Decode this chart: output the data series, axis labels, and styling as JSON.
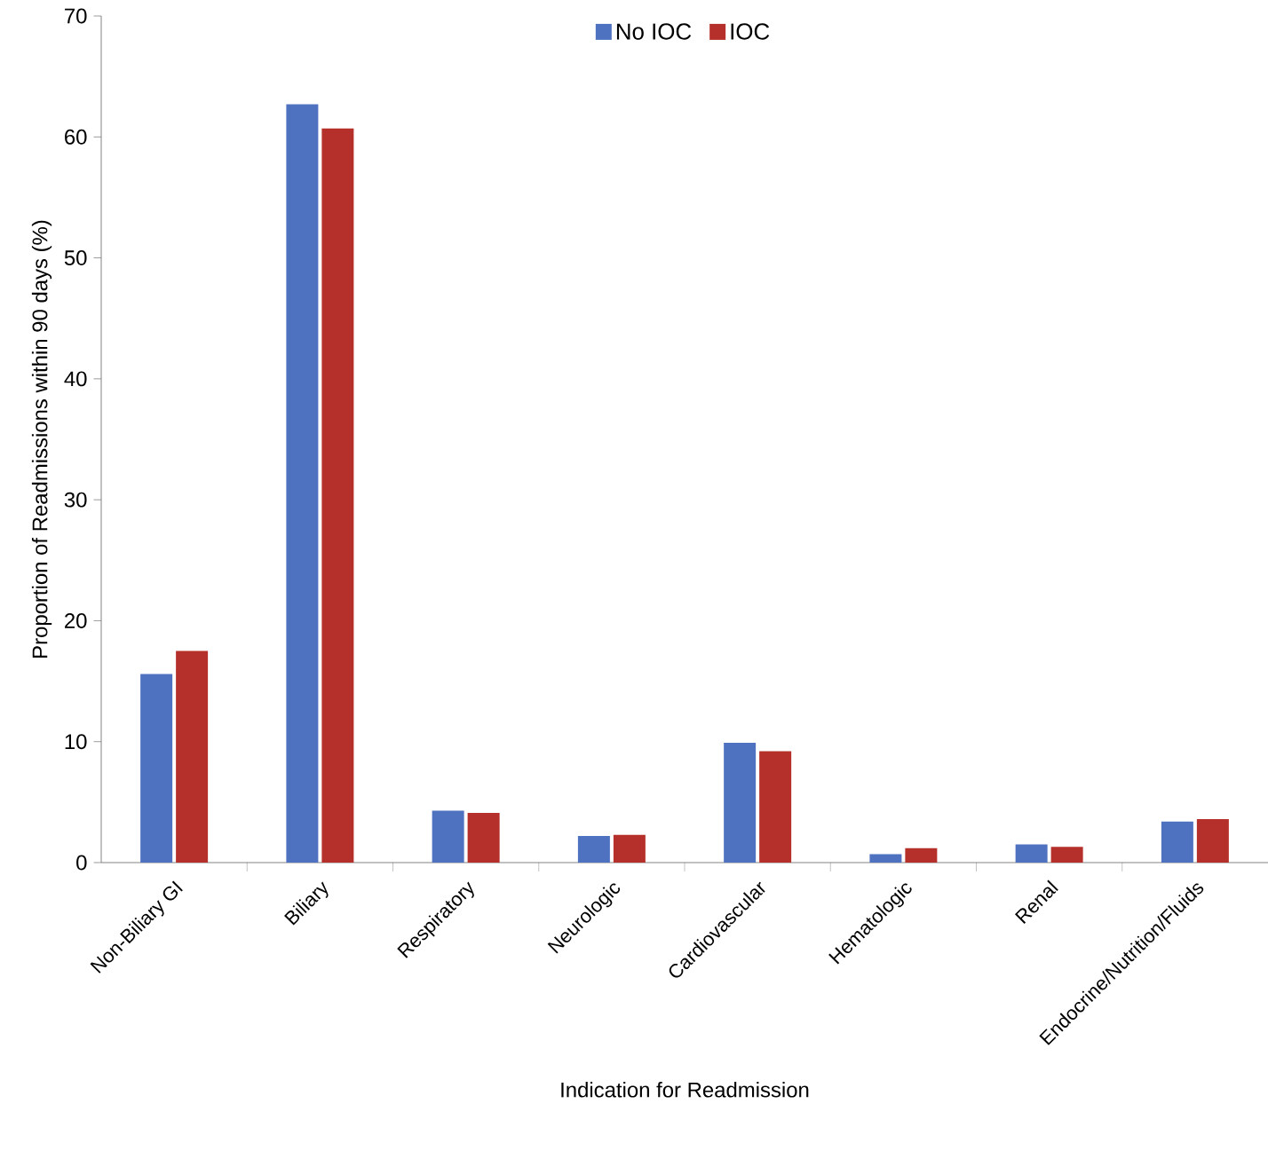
{
  "chart_data": {
    "type": "bar",
    "xlabel": "Indication for Readmission",
    "ylabel": "Proportion of Readmissions within 90 days (%)",
    "categories": [
      "Non-Biliary GI",
      "Biliary",
      "Respiratory",
      "Neurologic",
      "Cardiovascular",
      "Hematologic",
      "Renal",
      "Endocrine/Nutrition/Fluids"
    ],
    "series": [
      {
        "name": "No IOC",
        "color": "#4f72c0",
        "values": [
          15.6,
          62.7,
          4.3,
          2.2,
          9.9,
          0.7,
          1.5,
          3.4
        ]
      },
      {
        "name": "IOC",
        "color": "#b5302a",
        "values": [
          17.5,
          60.7,
          4.1,
          2.3,
          9.2,
          1.2,
          1.3,
          3.6
        ]
      }
    ],
    "ylim": [
      0,
      70
    ],
    "yticks": [
      0,
      10,
      20,
      30,
      40,
      50,
      60,
      70
    ],
    "grid": false,
    "legend": "top"
  }
}
